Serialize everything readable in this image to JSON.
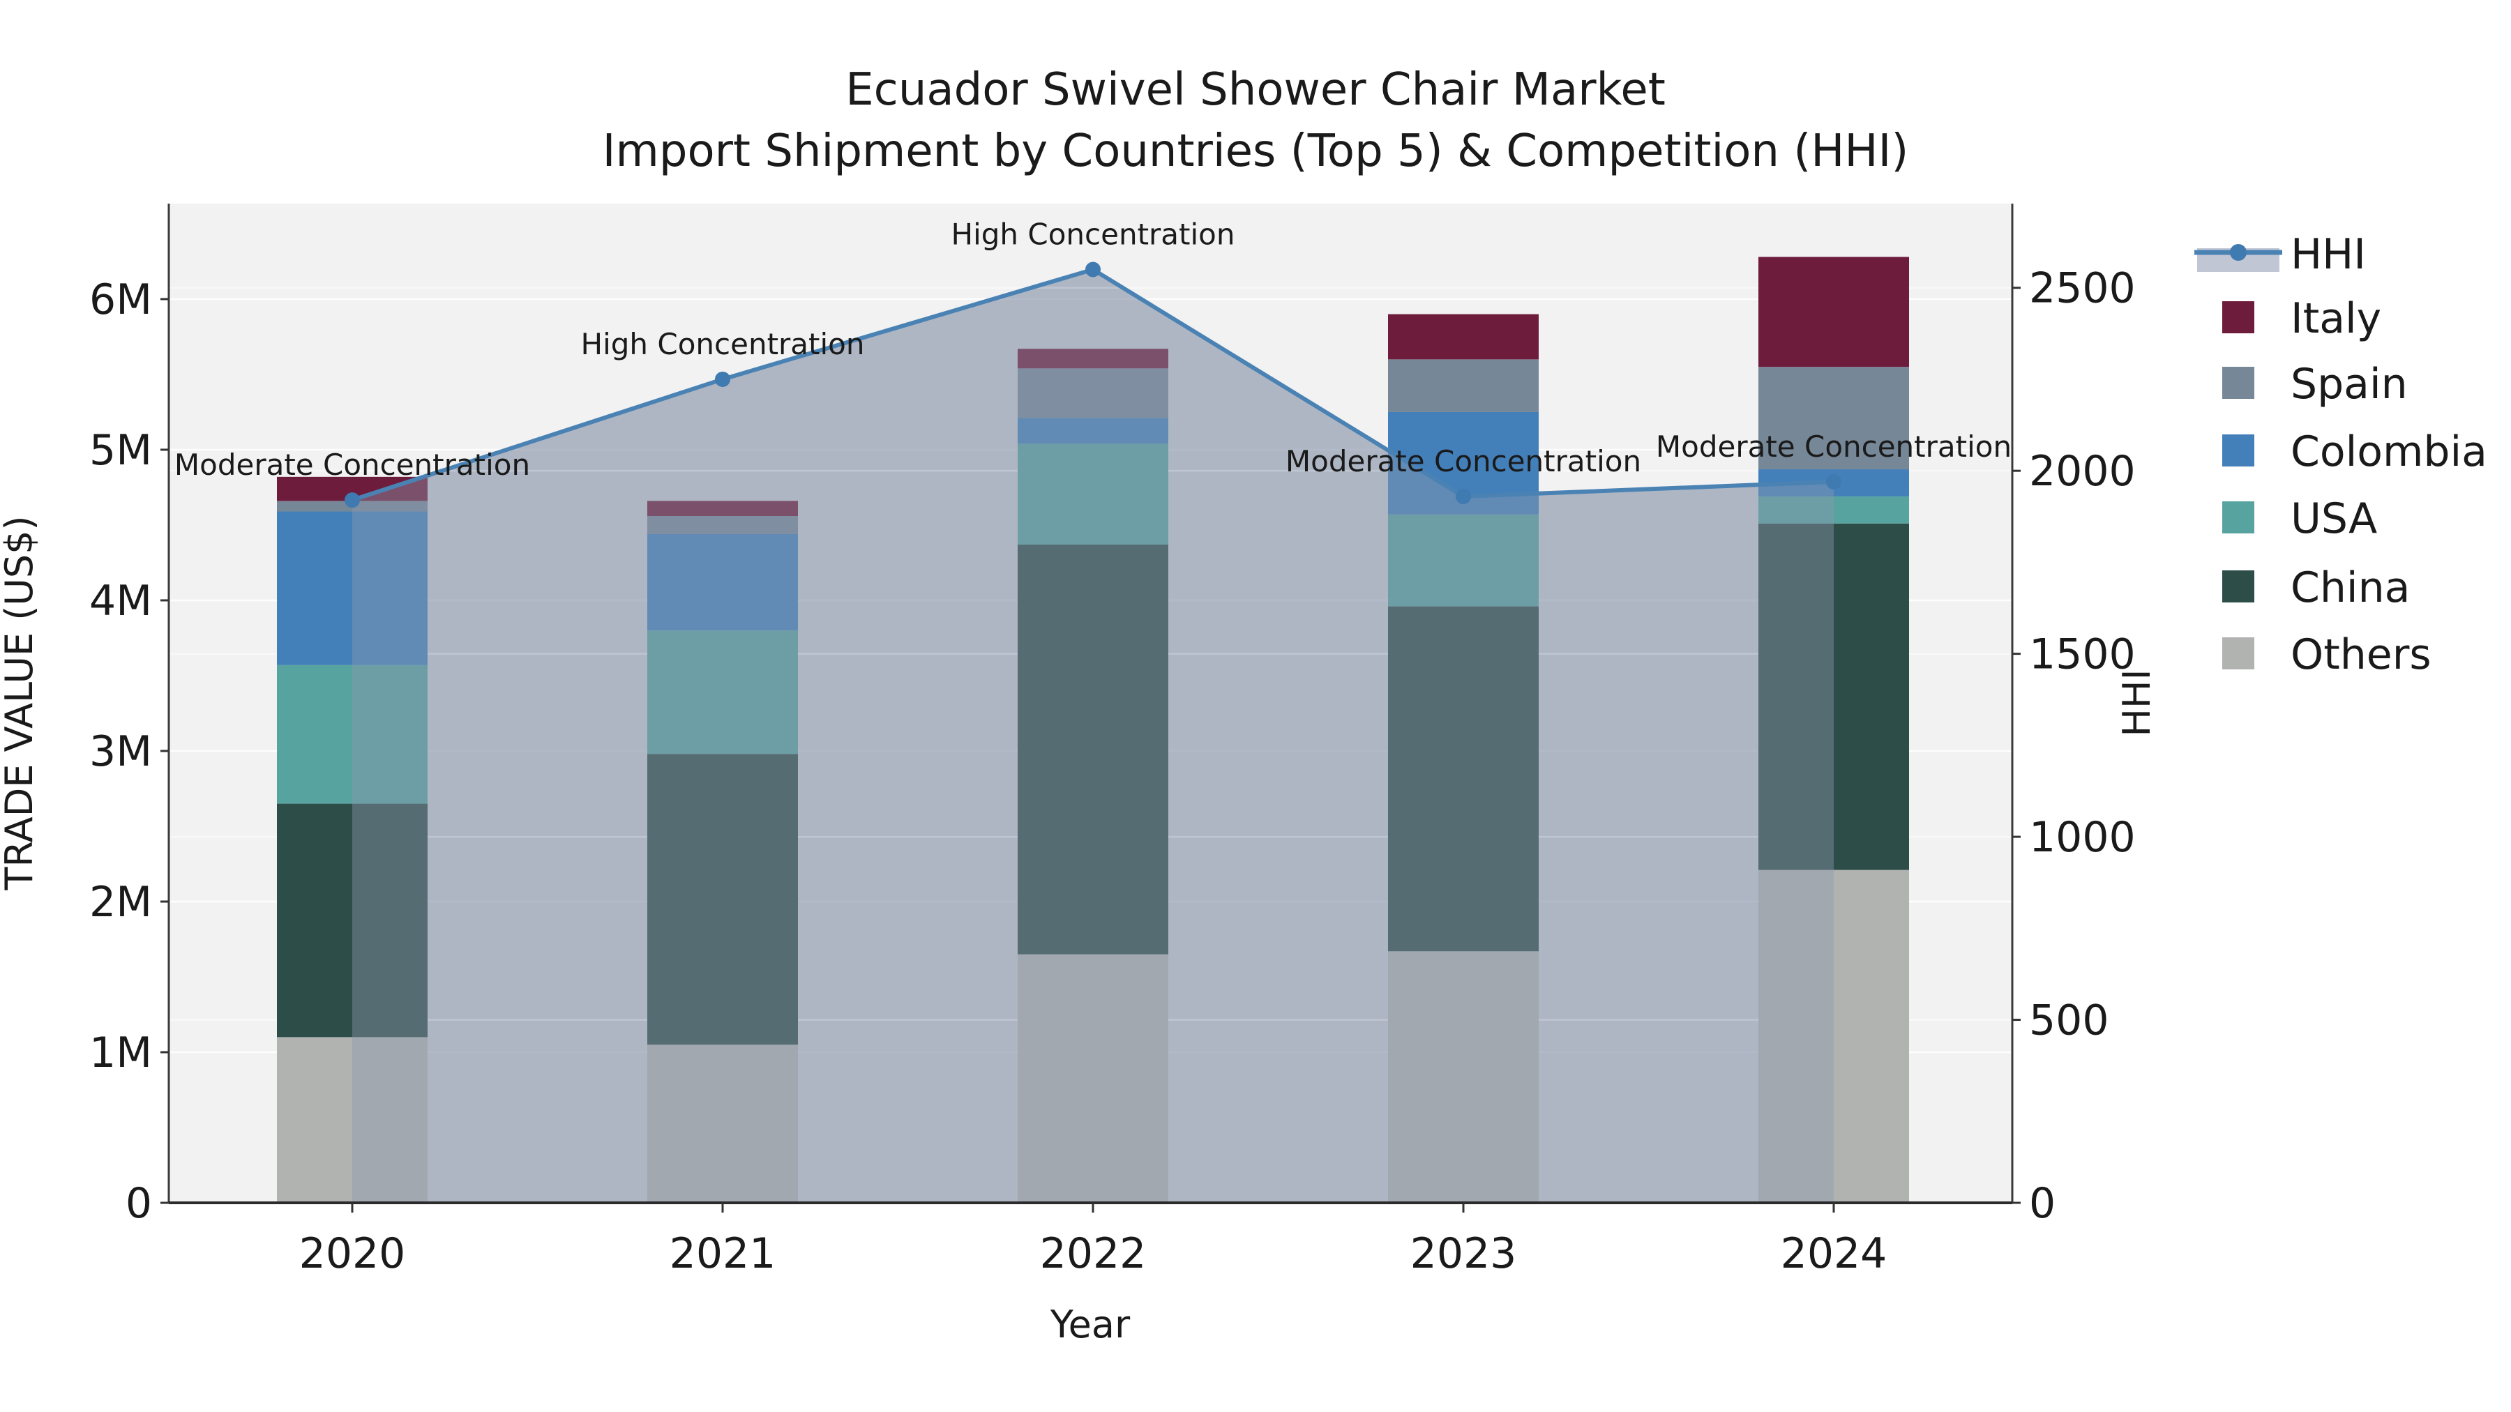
{
  "chart_data": {
    "type": "combo-stacked-bar-line",
    "title_line1": "Ecuador Swivel Shower Chair Market",
    "title_line2": "Import Shipment by Countries (Top 5) & Competition (HHI)",
    "xlabel": "Year",
    "ylabel_left": "TRADE VALUE (US$)",
    "ylabel_right": "HHI",
    "values_unit": "US$ millions",
    "categories": [
      "2020",
      "2021",
      "2022",
      "2023",
      "2024"
    ],
    "stack_order_bottom_to_top": [
      "Others",
      "China",
      "USA",
      "Colombia",
      "Spain",
      "Italy"
    ],
    "series": [
      {
        "name": "Others",
        "color": "#b1b3b1",
        "values_musd": [
          1.1,
          1.05,
          1.65,
          1.67,
          2.21
        ]
      },
      {
        "name": "China",
        "color": "#2d4d48",
        "values_musd": [
          1.55,
          1.93,
          2.72,
          2.29,
          2.3
        ]
      },
      {
        "name": "USA",
        "color": "#57a3a0",
        "values_musd": [
          0.92,
          0.82,
          0.67,
          0.61,
          0.18
        ]
      },
      {
        "name": "Colombia",
        "color": "#4380ba",
        "values_musd": [
          1.02,
          0.64,
          0.17,
          0.68,
          0.18
        ]
      },
      {
        "name": "Spain",
        "color": "#768798",
        "values_musd": [
          0.07,
          0.12,
          0.33,
          0.35,
          0.68
        ]
      },
      {
        "name": "Italy",
        "color": "#6e1c3c",
        "values_musd": [
          0.16,
          0.1,
          0.13,
          0.3,
          0.73
        ]
      }
    ],
    "line_series": {
      "name": "HHI",
      "color": "#4a82b4",
      "marker_color": "#3f7ab0",
      "area_fill_rgba": "rgba(140,152,175,0.42)",
      "values": [
        1920,
        2250,
        2550,
        1930,
        1970
      ]
    },
    "annotations": [
      {
        "year": "2020",
        "label": "Moderate Concentration"
      },
      {
        "year": "2021",
        "label": "High Concentration"
      },
      {
        "year": "2022",
        "label": "High Concentration"
      },
      {
        "year": "2023",
        "label": "Moderate Concentration"
      },
      {
        "year": "2024",
        "label": "Moderate Concentration"
      }
    ],
    "y_left": {
      "tick_labels": [
        "0",
        "1M",
        "2M",
        "3M",
        "4M",
        "5M",
        "6M"
      ],
      "tick_values_musd": [
        0,
        1,
        2,
        3,
        4,
        5,
        6
      ],
      "max_musd": 6.634
    },
    "y_right": {
      "tick_labels": [
        "0",
        "500",
        "1000",
        "1500",
        "2000",
        "2500"
      ],
      "tick_values": [
        0,
        500,
        1000,
        1500,
        2000,
        2500
      ],
      "max": 2730
    },
    "legend_order": [
      "HHI",
      "Italy",
      "Spain",
      "Colombia",
      "USA",
      "China",
      "Others"
    ],
    "style": {
      "plot_bg": "#f2f2f2",
      "grid_color": "#ffffff",
      "spine_color": "#2b2b2b",
      "text_color": "#1a1a1a"
    }
  }
}
